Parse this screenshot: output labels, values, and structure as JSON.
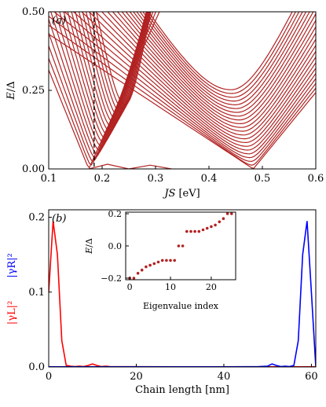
{
  "colors": {
    "bands": "#b22222",
    "left": "#ff0000",
    "right": "#0000ff",
    "dashed": "#000000",
    "inset_points": "#b22222"
  },
  "chart_data": [
    {
      "type": "line",
      "panel_label": "(a)",
      "xlabel_var": "JS",
      "xlabel_unit": "[eV]",
      "ylabel_var": "E",
      "ylabel_rest": "/Δ",
      "xlim": [
        0.1,
        0.6
      ],
      "ylim": [
        0.0,
        0.5
      ],
      "xticks": [
        0.1,
        0.2,
        0.3,
        0.4,
        0.5,
        0.6
      ],
      "xtick_labels": [
        "0.1",
        "0.2",
        "0.3",
        "0.4",
        "0.5",
        "0.6"
      ],
      "yticks": [
        0.0,
        0.25,
        0.5
      ],
      "ytick_labels": [
        "0.00",
        "0.25",
        "0.50"
      ],
      "dashed_vline_x": 0.185,
      "bands": {
        "left_group": {
          "vertex_x": 0.175,
          "count": 18,
          "gap_min": 0.0,
          "gap_step": 0.012,
          "slope": 4.2
        },
        "right_group": {
          "vertex_x": 0.483,
          "count": 22,
          "gap_min": 0.0,
          "gap_step": 0.012,
          "slope": 1.6
        },
        "low_lying": [
          {
            "x": [
              0.175,
              0.21,
              0.25,
              0.29,
              0.33
            ],
            "y": [
              0.0,
              0.015,
              0.0,
              0.012,
              0.0
            ]
          }
        ]
      }
    },
    {
      "type": "line",
      "panel_label": "(b)",
      "xlabel": "Chain length [nm]",
      "ylabel_left": "|γL|²",
      "ylabel_right": "|γR|²",
      "xlim": [
        0,
        61
      ],
      "ylim": [
        0.0,
        0.21
      ],
      "xticks": [
        0,
        20,
        40,
        60
      ],
      "xtick_labels": [
        "0",
        "20",
        "40",
        "60"
      ],
      "yticks": [
        0.0,
        0.1,
        0.2
      ],
      "ytick_labels": [
        "0.0",
        "0.1",
        "0.2"
      ],
      "series": [
        {
          "name": "|γL|²",
          "x": [
            0,
            1,
            2,
            3,
            4,
            5,
            6,
            7,
            8,
            9,
            10,
            11,
            12,
            13,
            14,
            15,
            20,
            30,
            40,
            50,
            55,
            61
          ],
          "y": [
            0.1,
            0.195,
            0.15,
            0.035,
            0.002,
            0.001,
            0.0005,
            0.001,
            0.0005,
            0.002,
            0.004,
            0.002,
            0.0005,
            0.001,
            0.0005,
            0.0003,
            0.0003,
            0.0002,
            0.0002,
            0.0002,
            0.0002,
            0.0002
          ]
        },
        {
          "name": "|γR|²",
          "x": [
            0,
            10,
            20,
            30,
            40,
            45,
            48,
            50,
            51,
            52,
            53,
            54,
            55,
            56,
            57,
            58,
            59,
            60,
            61
          ],
          "y": [
            0.0002,
            0.0002,
            0.0002,
            0.0002,
            0.0002,
            0.0003,
            0.0005,
            0.001,
            0.004,
            0.002,
            0.0005,
            0.001,
            0.0005,
            0.002,
            0.035,
            0.15,
            0.195,
            0.1,
            0.0
          ]
        }
      ]
    },
    {
      "type": "scatter",
      "xlabel": "Eigenvalue index",
      "ylabel_var": "E",
      "ylabel_rest": "/Δ",
      "xlim": [
        -1,
        26
      ],
      "ylim": [
        -0.21,
        0.21
      ],
      "xticks": [
        0,
        10,
        20
      ],
      "xtick_labels": [
        "0",
        "10",
        "20"
      ],
      "yticks": [
        -0.2,
        0.0,
        0.2
      ],
      "ytick_labels": [
        "−0.2",
        "0.0",
        "0.2"
      ],
      "x": [
        0,
        1,
        2,
        3,
        4,
        5,
        6,
        7,
        8,
        9,
        10,
        11,
        12,
        13,
        14,
        15,
        16,
        17,
        18,
        19,
        20,
        21,
        22,
        23,
        24,
        25
      ],
      "y": [
        -0.2,
        -0.2,
        -0.17,
        -0.15,
        -0.13,
        -0.12,
        -0.11,
        -0.1,
        -0.09,
        -0.09,
        -0.09,
        -0.09,
        0.0,
        0.0,
        0.09,
        0.09,
        0.09,
        0.09,
        0.1,
        0.11,
        0.12,
        0.13,
        0.15,
        0.17,
        0.2,
        0.2
      ]
    }
  ]
}
